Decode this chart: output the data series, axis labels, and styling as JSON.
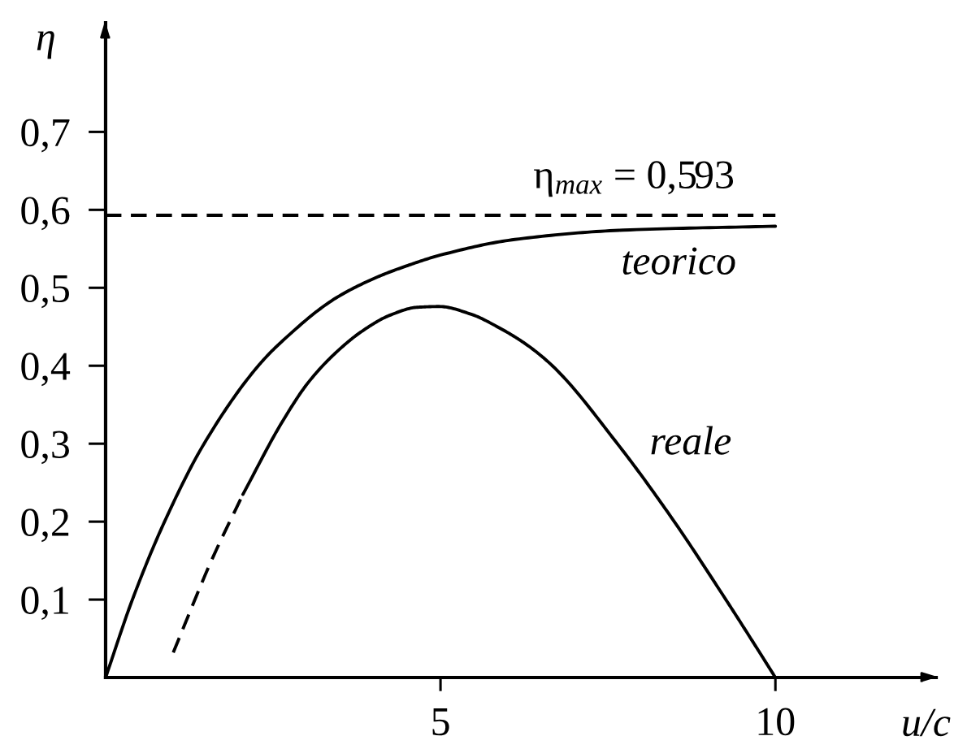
{
  "chart_data": {
    "type": "line",
    "xlabel": "u/c",
    "ylabel": "η",
    "xlim": [
      0,
      12.4
    ],
    "ylim": [
      0,
      0.84
    ],
    "xticks": [
      5,
      10
    ],
    "yticks": [
      {
        "value": 0.1,
        "label": "0,1"
      },
      {
        "value": 0.2,
        "label": "0,2"
      },
      {
        "value": 0.3,
        "label": "0,3"
      },
      {
        "value": 0.4,
        "label": "0,4"
      },
      {
        "value": 0.5,
        "label": "0,5"
      },
      {
        "value": 0.6,
        "label": "0,6"
      },
      {
        "value": 0.7,
        "label": "0,7"
      }
    ],
    "series": [
      {
        "name": "teorico",
        "color": "#000000",
        "x": [
          0,
          0.4,
          0.88,
          1.47,
          2.28,
          2.63,
          3.44,
          4.09,
          4.49,
          5.0,
          6.11,
          7.73,
          10.0
        ],
        "values": [
          0,
          0.1,
          0.2,
          0.3,
          0.4,
          0.431,
          0.487,
          0.515,
          0.528,
          0.542,
          0.562,
          0.574,
          0.579
        ]
      },
      {
        "name": "reale",
        "color": "#000000",
        "x": [
          2.05,
          2.63,
          3.03,
          3.44,
          3.84,
          4.25,
          4.65,
          4.98,
          5.46,
          5.87,
          6.27,
          6.67,
          7.65,
          8.45,
          9.26,
          9.67,
          10.0
        ],
        "values": [
          0.235,
          0.327,
          0.379,
          0.417,
          0.445,
          0.465,
          0.475,
          0.476,
          0.466,
          0.449,
          0.428,
          0.4,
          0.299,
          0.205,
          0.1,
          0.045,
          0
        ]
      },
      {
        "color": "#000000",
        "line_style": "dashed",
        "x": [
          1.01,
          1.58,
          2.05
        ],
        "values": [
          0.032,
          0.15,
          0.235
        ]
      }
    ],
    "ref_lines": [
      {
        "axis": "y",
        "value": 0.593,
        "label": "η$_{max}$ = 0,593",
        "color": "#000000",
        "line_style": "dashed"
      }
    ]
  }
}
